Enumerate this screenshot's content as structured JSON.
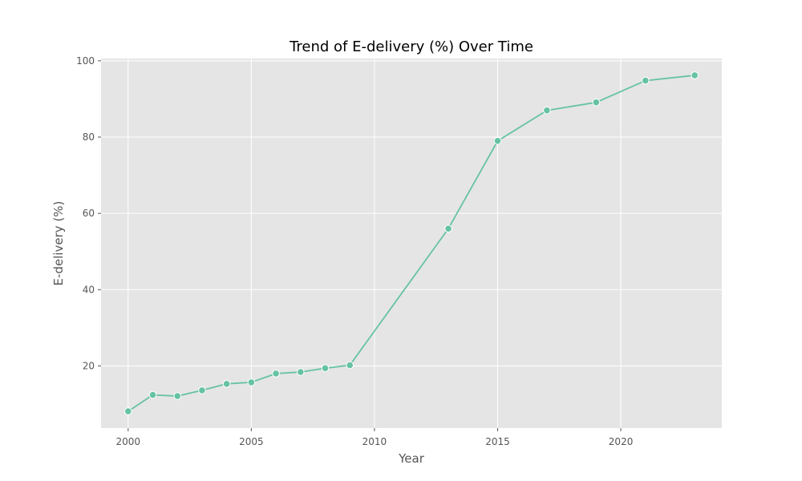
{
  "chart_data": {
    "type": "line",
    "title": "Trend of E-delivery (%) Over Time",
    "xlabel": "Year",
    "ylabel": "E-delivery (%)",
    "x": [
      2000,
      2001,
      2002,
      2003,
      2004,
      2005,
      2006,
      2007,
      2008,
      2009,
      2013,
      2015,
      2017,
      2019,
      2021,
      2023
    ],
    "series": [
      {
        "values": [
          8.1,
          12.4,
          12.1,
          13.6,
          15.3,
          15.7,
          18.0,
          18.4,
          19.4,
          20.2,
          56.0,
          79.0,
          87.0,
          89.1,
          94.8,
          96.2
        ]
      }
    ],
    "xlim": [
      1998.9,
      2024.1
    ],
    "ylim": [
      3.7,
      100.6
    ],
    "xticks": [
      2000,
      2005,
      2010,
      2015,
      2020
    ],
    "yticks": [
      20,
      40,
      60,
      80,
      100
    ],
    "grid": true,
    "legend": "none",
    "colors": {
      "line": "#66c2a5",
      "plot_background": "#e5e5e5",
      "grid": "#ffffff",
      "tick_text": "#555555"
    }
  }
}
